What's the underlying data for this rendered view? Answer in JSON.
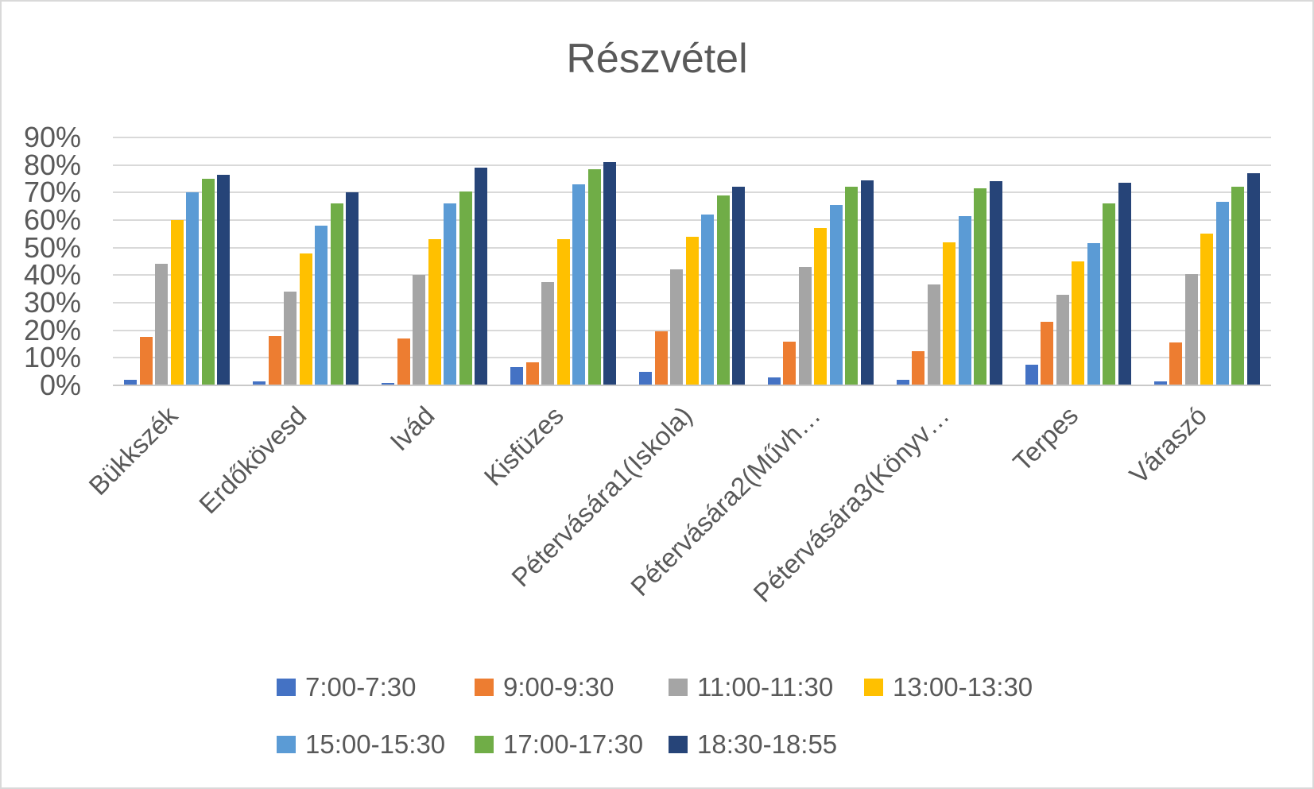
{
  "chart_data": {
    "type": "bar",
    "title": "Részvétel",
    "categories": [
      "Bükkszék",
      "Erdőkövesd",
      "Ivád",
      "Kisfüzes",
      "Pétervására1(Iskola)",
      "Pétervására2(Művh…",
      "Pétervására3(Könyv…",
      "Terpes",
      "Váraszó"
    ],
    "series": [
      {
        "name": "7:00-7:30",
        "color": "#4472C4",
        "values": [
          2,
          1.5,
          1,
          6.5,
          5,
          3,
          2,
          7.5,
          1.5
        ]
      },
      {
        "name": "9:00-9:30",
        "color": "#ED7D31",
        "values": [
          17.5,
          18,
          17,
          8.5,
          19.5,
          16,
          12.5,
          23,
          15.5
        ]
      },
      {
        "name": "11:00-11:30",
        "color": "#A5A5A5",
        "values": [
          44,
          34,
          40,
          37.5,
          42,
          43,
          36.5,
          33,
          40.5
        ]
      },
      {
        "name": "13:00-13:30",
        "color": "#FFC000",
        "values": [
          60,
          48,
          53,
          53,
          54,
          57,
          52,
          45,
          55
        ]
      },
      {
        "name": "15:00-15:30",
        "color": "#5B9BD5",
        "values": [
          70,
          58,
          66,
          73,
          62,
          65.5,
          61.5,
          51.5,
          66.5
        ]
      },
      {
        "name": "17:00-17:30",
        "color": "#70AD47",
        "values": [
          75,
          66,
          70.5,
          78.5,
          69,
          72,
          71.5,
          66,
          72
        ]
      },
      {
        "name": "18:30-18:55",
        "color": "#264478",
        "values": [
          76.5,
          70,
          79,
          81,
          72,
          74.5,
          74,
          73.5,
          77
        ]
      }
    ],
    "ylim": [
      0,
      90
    ],
    "ytick_step": 10,
    "ytick_label_suffix": "%",
    "grid": true,
    "legend_position": "bottom",
    "legend_rows": [
      [
        "7:00-7:30",
        "9:00-9:30",
        "11:00-11:30",
        "13:00-13:30"
      ],
      [
        "15:00-15:30",
        "17:00-17:30",
        "18:30-18:55"
      ]
    ],
    "text_color": "#595959",
    "gridline_color": "#d9d9d9"
  }
}
